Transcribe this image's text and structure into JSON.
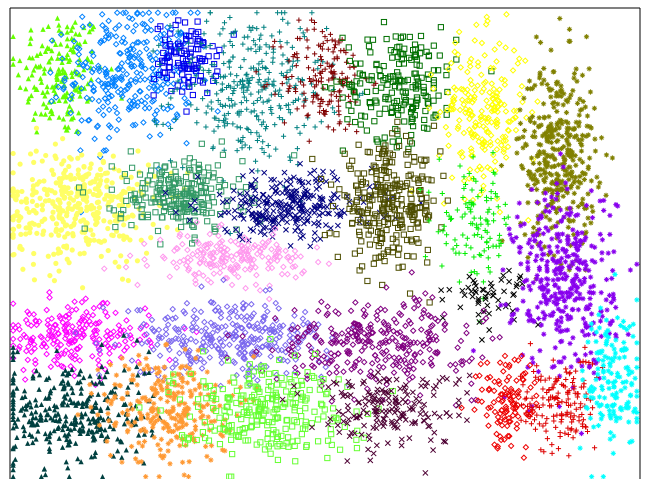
{
  "chart_data": {
    "type": "scatter",
    "title": "",
    "xlabel": "",
    "ylabel": "",
    "xlim": [
      0,
      1
    ],
    "ylim": [
      0,
      1
    ],
    "grid": false,
    "legend": "none",
    "axes_frame": [
      "left",
      "top",
      "right"
    ],
    "clusters": [
      {
        "color": "#66ff00",
        "marker": "triangle",
        "cx": 0.08,
        "cy": 0.86,
        "sx": 0.035,
        "sy": 0.07,
        "n": 170
      },
      {
        "color": "#0080ff",
        "marker": "diamond",
        "cx": 0.19,
        "cy": 0.86,
        "sx": 0.05,
        "sy": 0.07,
        "n": 300
      },
      {
        "color": "#0000ee",
        "marker": "square",
        "cx": 0.28,
        "cy": 0.89,
        "sx": 0.025,
        "sy": 0.04,
        "n": 110
      },
      {
        "color": "#008080",
        "marker": "plus",
        "cx": 0.38,
        "cy": 0.83,
        "sx": 0.06,
        "sy": 0.08,
        "n": 320
      },
      {
        "color": "#800000",
        "marker": "plus",
        "cx": 0.5,
        "cy": 0.85,
        "sx": 0.035,
        "sy": 0.06,
        "n": 160
      },
      {
        "color": "#007000",
        "marker": "square",
        "cx": 0.62,
        "cy": 0.84,
        "sx": 0.045,
        "sy": 0.06,
        "n": 200
      },
      {
        "color": "#ffff00",
        "marker": "diamond",
        "cx": 0.75,
        "cy": 0.78,
        "sx": 0.035,
        "sy": 0.08,
        "n": 220
      },
      {
        "color": "#808000",
        "marker": "asterisk",
        "cx": 0.87,
        "cy": 0.69,
        "sx": 0.03,
        "sy": 0.1,
        "n": 380
      },
      {
        "color": "#ffff66",
        "marker": "circle",
        "cx": 0.11,
        "cy": 0.58,
        "sx": 0.06,
        "sy": 0.06,
        "n": 380
      },
      {
        "color": "#339966",
        "marker": "square",
        "cx": 0.27,
        "cy": 0.6,
        "sx": 0.05,
        "sy": 0.04,
        "n": 230
      },
      {
        "color": "#000080",
        "marker": "x",
        "cx": 0.44,
        "cy": 0.58,
        "sx": 0.07,
        "sy": 0.035,
        "n": 280
      },
      {
        "color": "#4d4d00",
        "marker": "square",
        "cx": 0.6,
        "cy": 0.58,
        "sx": 0.04,
        "sy": 0.06,
        "n": 280
      },
      {
        "color": "#00ee00",
        "marker": "plus",
        "cx": 0.74,
        "cy": 0.54,
        "sx": 0.03,
        "sy": 0.06,
        "n": 110
      },
      {
        "color": "#ff99ee",
        "marker": "diamond",
        "cx": 0.35,
        "cy": 0.47,
        "sx": 0.06,
        "sy": 0.025,
        "n": 200
      },
      {
        "color": "#000000",
        "marker": "x",
        "cx": 0.76,
        "cy": 0.39,
        "sx": 0.03,
        "sy": 0.03,
        "n": 55
      },
      {
        "color": "#8800ee",
        "marker": "asterisk",
        "cx": 0.88,
        "cy": 0.42,
        "sx": 0.04,
        "sy": 0.1,
        "n": 380
      },
      {
        "color": "#ff00ff",
        "marker": "diamond",
        "cx": 0.1,
        "cy": 0.3,
        "sx": 0.06,
        "sy": 0.035,
        "n": 220
      },
      {
        "color": "#7b68ee",
        "marker": "diamond",
        "cx": 0.35,
        "cy": 0.3,
        "sx": 0.08,
        "sy": 0.04,
        "n": 320
      },
      {
        "color": "#800080",
        "marker": "diamond",
        "cx": 0.58,
        "cy": 0.29,
        "sx": 0.08,
        "sy": 0.045,
        "n": 300
      },
      {
        "color": "#004040",
        "marker": "triangle",
        "cx": 0.1,
        "cy": 0.14,
        "sx": 0.06,
        "sy": 0.06,
        "n": 320
      },
      {
        "color": "#ff9933",
        "marker": "asterisk",
        "cx": 0.25,
        "cy": 0.15,
        "sx": 0.05,
        "sy": 0.06,
        "n": 280
      },
      {
        "color": "#66ff33",
        "marker": "square",
        "cx": 0.4,
        "cy": 0.15,
        "sx": 0.07,
        "sy": 0.05,
        "n": 260
      },
      {
        "color": "#4d0033",
        "marker": "x",
        "cx": 0.6,
        "cy": 0.15,
        "sx": 0.06,
        "sy": 0.04,
        "n": 180
      },
      {
        "color": "#ee0000",
        "marker": "diamond",
        "cx": 0.79,
        "cy": 0.16,
        "sx": 0.025,
        "sy": 0.05,
        "n": 110
      },
      {
        "color": "#dd0000",
        "marker": "plus",
        "cx": 0.87,
        "cy": 0.16,
        "sx": 0.03,
        "sy": 0.05,
        "n": 160
      },
      {
        "color": "#00ffff",
        "marker": "asterisk",
        "cx": 0.96,
        "cy": 0.21,
        "sx": 0.025,
        "sy": 0.08,
        "n": 160
      }
    ]
  }
}
